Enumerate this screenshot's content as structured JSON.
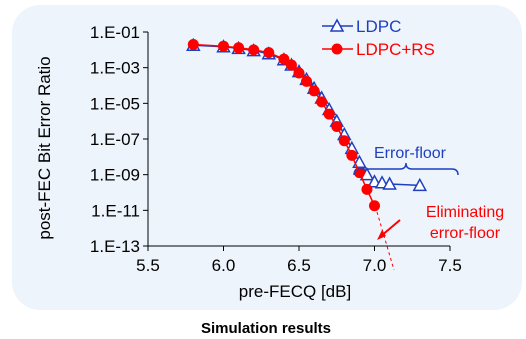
{
  "caption": "Simulation results",
  "chart_data": {
    "type": "line",
    "xlabel": "pre-FECQ [dB]",
    "ylabel": "post-FEC Bit Error Ratio",
    "xlim": [
      5.5,
      7.5
    ],
    "x_ticks": [
      "5.5",
      "6.0",
      "6.5",
      "7.0",
      "7.5"
    ],
    "ylim_log10": [
      -13,
      -1
    ],
    "y_ticks": [
      "1.E-01",
      "1.E-03",
      "1.E-05",
      "1.E-07",
      "1.E-09",
      "1.E-11",
      "1.E-13"
    ],
    "y_scale": "log",
    "legend_position": "top-right",
    "series": [
      {
        "name": "LDPC",
        "color": "#1f3fbf",
        "marker": "open-triangle",
        "x": [
          5.8,
          6.0,
          6.1,
          6.2,
          6.3,
          6.4,
          6.45,
          6.5,
          6.55,
          6.6,
          6.65,
          6.7,
          6.75,
          6.8,
          6.85,
          6.9,
          6.95,
          7.0,
          7.05,
          7.1,
          7.3
        ],
        "y": [
          0.018,
          0.015,
          0.012,
          0.009,
          0.006,
          0.0028,
          0.0014,
          0.0006,
          0.00022,
          7e-05,
          2e-05,
          4.5e-06,
          1e-06,
          1.8e-07,
          3e-08,
          5e-09,
          1e-09,
          4e-10,
          3.5e-10,
          3e-10,
          2.5e-10
        ]
      },
      {
        "name": "LDPC+RS",
        "color": "#ff0000",
        "marker": "filled-circle",
        "x": [
          5.8,
          6.0,
          6.1,
          6.2,
          6.3,
          6.4,
          6.45,
          6.5,
          6.55,
          6.6,
          6.65,
          6.7,
          6.75,
          6.8,
          6.85,
          6.9,
          6.95,
          7.0
        ],
        "y": [
          0.02,
          0.016,
          0.013,
          0.01,
          0.007,
          0.003,
          0.0014,
          0.0005,
          0.00017,
          5e-05,
          1.2e-05,
          2.5e-06,
          5e-07,
          8e-08,
          1.2e-08,
          1.3e-09,
          1.5e-10,
          1.8e-11
        ]
      }
    ],
    "annotations": [
      {
        "text": "Error-floor",
        "color": "#1f3fbf"
      },
      {
        "text": "Eliminating error-floor",
        "lines": [
          "Eliminating",
          "error-floor"
        ],
        "color": "#ff0000"
      }
    ]
  }
}
